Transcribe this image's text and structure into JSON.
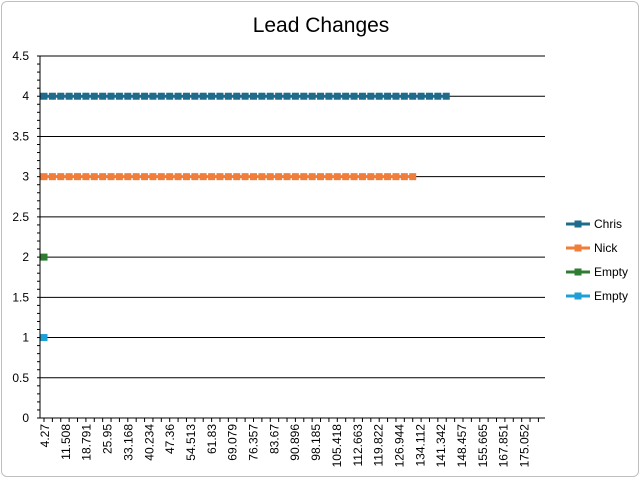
{
  "chart_data": {
    "type": "line",
    "title": "Lead Changes",
    "xlabel": "",
    "ylabel": "",
    "ylim": [
      0,
      4.5
    ],
    "y_ticks": [
      "0",
      "0.5",
      "1",
      "1.5",
      "2",
      "2.5",
      "3",
      "3.5",
      "4",
      "4.5"
    ],
    "x_tick_labels": [
      "4.27",
      "11.508",
      "18.791",
      "25.95",
      "33.168",
      "40.234",
      "47.36",
      "54.513",
      "61.83",
      "69.079",
      "76.357",
      "83.67",
      "90.896",
      "98.185",
      "105.418",
      "112.663",
      "119.822",
      "126.944",
      "134.112",
      "141.342",
      "148.457",
      "155.665",
      "167.851",
      "175.052"
    ],
    "grid": true,
    "legend_position": "right",
    "series": [
      {
        "name": "Chris",
        "color": "#1f6b8c",
        "y": 4,
        "point_count": 49
      },
      {
        "name": "Nick",
        "color": "#f07d3a",
        "y": 3,
        "point_count": 45
      },
      {
        "name": "Empty",
        "color": "#2e7d32",
        "y": 2,
        "point_count": 1
      },
      {
        "name": "Empty",
        "color": "#1e9fd6",
        "y": 1,
        "point_count": 1
      }
    ]
  }
}
